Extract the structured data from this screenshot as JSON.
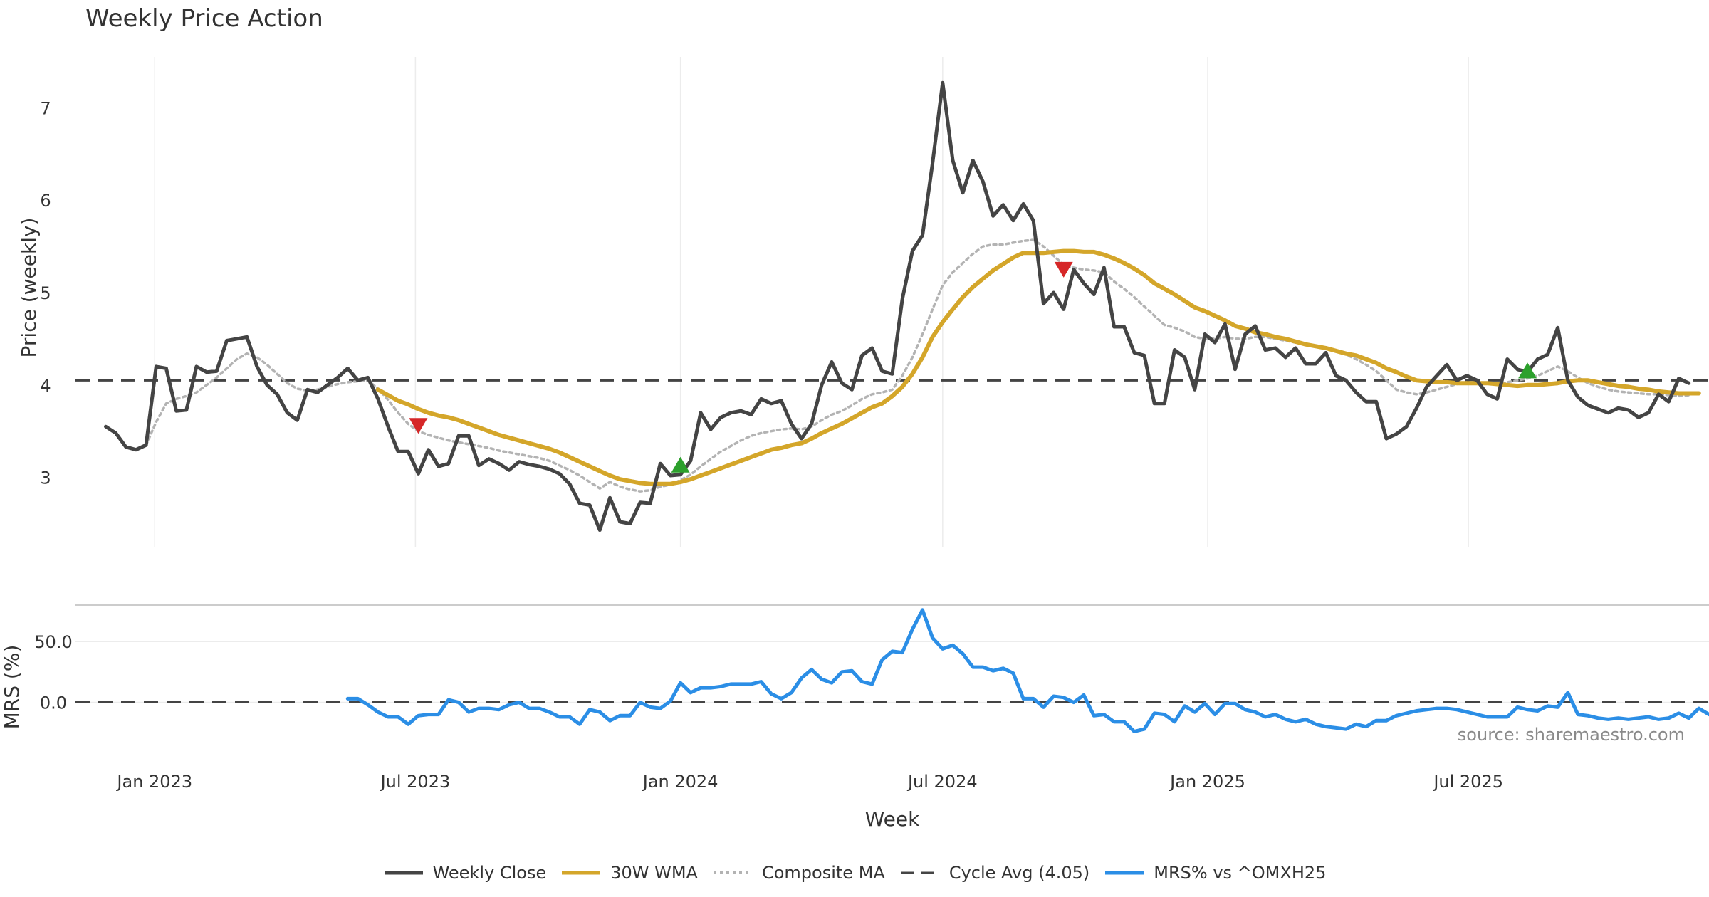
{
  "title": "Weekly Price Action",
  "watermark": "source: sharemaestro.com",
  "chart_data": [
    {
      "type": "line",
      "ylabel": "Price (weekly)",
      "xlabel": "Week",
      "x_start": "2022-11-28",
      "x_end": "2025-12-08",
      "x_ticks": [
        "Jan 2023",
        "Jul 2023",
        "Jan 2024",
        "Jul 2024",
        "Jan 2025",
        "Jul 2025"
      ],
      "y_ticks": [
        3,
        4,
        5,
        6,
        7
      ],
      "ylim": [
        2.25,
        7.55
      ],
      "grid": true,
      "reference_line": {
        "name": "Cycle Avg (4.05)",
        "value": 4.05
      },
      "series": [
        {
          "name": "Weekly Close",
          "color": "#444444",
          "values": [
            3.55,
            3.48,
            3.33,
            3.3,
            3.35,
            4.2,
            4.18,
            3.72,
            3.73,
            4.2,
            4.14,
            4.15,
            4.48,
            4.5,
            4.52,
            4.2,
            4.0,
            3.9,
            3.7,
            3.62,
            3.95,
            3.92,
            4.0,
            4.08,
            4.18,
            4.05,
            4.08,
            3.85,
            3.55,
            3.28,
            3.28,
            3.04,
            3.3,
            3.12,
            3.15,
            3.45,
            3.45,
            3.13,
            3.2,
            3.15,
            3.08,
            3.17,
            3.14,
            3.12,
            3.09,
            3.04,
            2.93,
            2.72,
            2.7,
            2.43,
            2.78,
            2.52,
            2.5,
            2.73,
            2.72,
            3.15,
            3.02,
            3.03,
            3.18,
            3.7,
            3.52,
            3.65,
            3.7,
            3.72,
            3.68,
            3.85,
            3.8,
            3.83,
            3.58,
            3.42,
            3.58,
            4.0,
            4.25,
            4.02,
            3.95,
            4.32,
            4.4,
            4.15,
            4.12,
            4.93,
            5.45,
            5.62,
            6.4,
            7.27,
            6.43,
            6.08,
            6.43,
            6.2,
            5.83,
            5.95,
            5.78,
            5.96,
            5.78,
            4.88,
            5.0,
            4.82,
            5.25,
            5.1,
            4.98,
            5.27,
            4.63,
            4.63,
            4.35,
            4.32,
            3.8,
            3.8,
            4.38,
            4.3,
            3.95,
            4.55,
            4.46,
            4.66,
            4.17,
            4.55,
            4.64,
            4.38,
            4.4,
            4.3,
            4.4,
            4.23,
            4.23,
            4.35,
            4.1,
            4.05,
            3.92,
            3.82,
            3.82,
            3.42,
            3.47,
            3.55,
            3.75,
            3.98,
            4.1,
            4.22,
            4.05,
            4.1,
            4.05,
            3.9,
            3.85,
            4.28,
            4.17,
            4.14,
            4.28,
            4.33,
            4.62,
            4.05,
            3.87,
            3.78,
            3.74,
            3.7,
            3.75,
            3.73,
            3.65,
            3.7,
            3.9,
            3.82,
            4.07,
            4.02
          ]
        },
        {
          "name": "30W WMA",
          "color": "#d4a62a",
          "values": [
            null,
            null,
            null,
            null,
            null,
            null,
            null,
            null,
            null,
            null,
            null,
            null,
            null,
            null,
            null,
            null,
            null,
            null,
            null,
            null,
            null,
            null,
            null,
            null,
            null,
            null,
            null,
            3.95,
            3.89,
            3.83,
            3.79,
            3.74,
            3.7,
            3.67,
            3.65,
            3.62,
            3.58,
            3.54,
            3.5,
            3.46,
            3.43,
            3.4,
            3.37,
            3.34,
            3.31,
            3.27,
            3.22,
            3.17,
            3.12,
            3.07,
            3.02,
            2.98,
            2.96,
            2.94,
            2.93,
            2.93,
            2.93,
            2.95,
            2.98,
            3.02,
            3.06,
            3.1,
            3.14,
            3.18,
            3.22,
            3.26,
            3.3,
            3.32,
            3.35,
            3.37,
            3.42,
            3.48,
            3.53,
            3.58,
            3.64,
            3.7,
            3.76,
            3.8,
            3.88,
            3.98,
            4.12,
            4.3,
            4.52,
            4.68,
            4.82,
            4.95,
            5.06,
            5.15,
            5.24,
            5.31,
            5.38,
            5.43,
            5.43,
            5.43,
            5.44,
            5.45,
            5.45,
            5.44,
            5.44,
            5.41,
            5.37,
            5.32,
            5.26,
            5.19,
            5.1,
            5.04,
            4.98,
            4.91,
            4.84,
            4.8,
            4.75,
            4.7,
            4.64,
            4.61,
            4.57,
            4.55,
            4.52,
            4.5,
            4.47,
            4.44,
            4.42,
            4.4,
            4.37,
            4.34,
            4.32,
            4.28,
            4.24,
            4.18,
            4.14,
            4.09,
            4.05,
            4.04,
            4.03,
            4.03,
            4.02,
            4.02,
            4.02,
            4.02,
            4.01,
            4.0,
            3.99,
            4.0,
            4.0,
            4.01,
            4.02,
            4.04,
            4.05,
            4.05,
            4.03,
            4.01,
            3.99,
            3.98,
            3.96,
            3.95,
            3.93,
            3.92,
            3.91,
            3.91,
            3.91
          ]
        },
        {
          "name": "Composite MA",
          "color": "#b3b3b3",
          "values": [
            null,
            null,
            null,
            null,
            3.35,
            3.6,
            3.8,
            3.85,
            3.88,
            3.92,
            4.0,
            4.08,
            4.18,
            4.28,
            4.34,
            4.3,
            4.22,
            4.12,
            4.02,
            3.96,
            3.94,
            3.95,
            3.98,
            4.01,
            4.03,
            4.04,
            4.05,
            3.96,
            3.84,
            3.7,
            3.58,
            3.5,
            3.46,
            3.43,
            3.4,
            3.38,
            3.36,
            3.34,
            3.32,
            3.29,
            3.27,
            3.25,
            3.23,
            3.21,
            3.18,
            3.13,
            3.08,
            3.02,
            2.95,
            2.88,
            2.95,
            2.9,
            2.87,
            2.85,
            2.86,
            2.9,
            2.92,
            2.97,
            3.03,
            3.12,
            3.2,
            3.28,
            3.34,
            3.4,
            3.45,
            3.48,
            3.5,
            3.52,
            3.53,
            3.52,
            3.55,
            3.62,
            3.68,
            3.72,
            3.78,
            3.85,
            3.9,
            3.92,
            3.95,
            4.1,
            4.3,
            4.55,
            4.82,
            5.08,
            5.22,
            5.32,
            5.42,
            5.5,
            5.52,
            5.52,
            5.54,
            5.56,
            5.57,
            5.5,
            5.4,
            5.3,
            5.27,
            5.25,
            5.24,
            5.22,
            5.12,
            5.04,
            4.95,
            4.85,
            4.75,
            4.65,
            4.62,
            4.58,
            4.52,
            4.5,
            4.5,
            4.52,
            4.5,
            4.5,
            4.52,
            4.52,
            4.5,
            4.48,
            4.46,
            4.44,
            4.42,
            4.4,
            4.38,
            4.33,
            4.28,
            4.22,
            4.15,
            4.05,
            3.95,
            3.92,
            3.9,
            3.92,
            3.95,
            3.98,
            4.01,
            4.03,
            4.03,
            4.02,
            4.01,
            4.03,
            4.05,
            4.07,
            4.1,
            4.15,
            4.2,
            4.15,
            4.08,
            4.02,
            3.98,
            3.95,
            3.93,
            3.92,
            3.91,
            3.9,
            3.9,
            3.89,
            3.88,
            3.89
          ]
        }
      ],
      "markers": [
        {
          "type": "sell",
          "index": 31,
          "value": 3.55,
          "color": "#d62728"
        },
        {
          "type": "buy",
          "index": 57,
          "value": 3.13,
          "color": "#2ca02c"
        },
        {
          "type": "sell",
          "index": 95,
          "value": 5.24,
          "color": "#d62728"
        },
        {
          "type": "buy",
          "index": 141,
          "value": 4.15,
          "color": "#2ca02c"
        }
      ]
    },
    {
      "type": "line",
      "ylabel": "MRS (%)",
      "xlabel": "Week",
      "y_ticks": [
        "0.0",
        "50.0"
      ],
      "ylim": [
        -36,
        80
      ],
      "reference_line": {
        "value": 0
      },
      "series": [
        {
          "name": "MRS% vs ^OMXH25",
          "color": "#2b8ee6",
          "start_index": 24,
          "values": [
            3,
            3,
            -2,
            -8,
            -12,
            -12,
            -18,
            -11,
            -10,
            -10,
            2,
            0,
            -8,
            -5,
            -5,
            -6,
            -2,
            0,
            -5,
            -5,
            -8,
            -12,
            -12,
            -18,
            -6,
            -8,
            -15,
            -11,
            -11,
            0,
            -4,
            -5,
            1,
            16,
            8,
            12,
            12,
            13,
            15,
            15,
            15,
            17,
            7,
            3,
            8,
            20,
            27,
            19,
            16,
            25,
            26,
            17,
            15,
            35,
            42,
            41,
            60,
            76,
            53,
            44,
            47,
            40,
            29,
            29,
            26,
            28,
            24,
            3,
            3,
            -4,
            5,
            4,
            0,
            6,
            -11,
            -10,
            -16,
            -16,
            -24,
            -22,
            -9,
            -10,
            -16,
            -3,
            -8,
            -1,
            -10,
            -1,
            -1,
            -6,
            -8,
            -12,
            -10,
            -14,
            -16,
            -14,
            -18,
            -20,
            -21,
            -22,
            -18,
            -20,
            -15,
            -15,
            -11,
            -9,
            -7,
            -6,
            -5,
            -5,
            -6,
            -8,
            -10,
            -12,
            -12,
            -12,
            -4,
            -6,
            -7,
            -3,
            -4,
            8,
            -10,
            -11,
            -13,
            -14,
            -13,
            -14,
            -13,
            -12,
            -14,
            -13,
            -9,
            -13,
            -5,
            -10
          ]
        }
      ]
    }
  ],
  "legend": [
    {
      "label": "Weekly Close",
      "color": "#444444",
      "style": "solid"
    },
    {
      "label": "30W WMA",
      "color": "#d4a62a",
      "style": "solid"
    },
    {
      "label": "Composite MA",
      "color": "#b3b3b3",
      "style": "dotted"
    },
    {
      "label": "Cycle Avg (4.05)",
      "color": "#444444",
      "style": "dashed"
    },
    {
      "label": "MRS% vs ^OMXH25",
      "color": "#2b8ee6",
      "style": "solid"
    }
  ]
}
